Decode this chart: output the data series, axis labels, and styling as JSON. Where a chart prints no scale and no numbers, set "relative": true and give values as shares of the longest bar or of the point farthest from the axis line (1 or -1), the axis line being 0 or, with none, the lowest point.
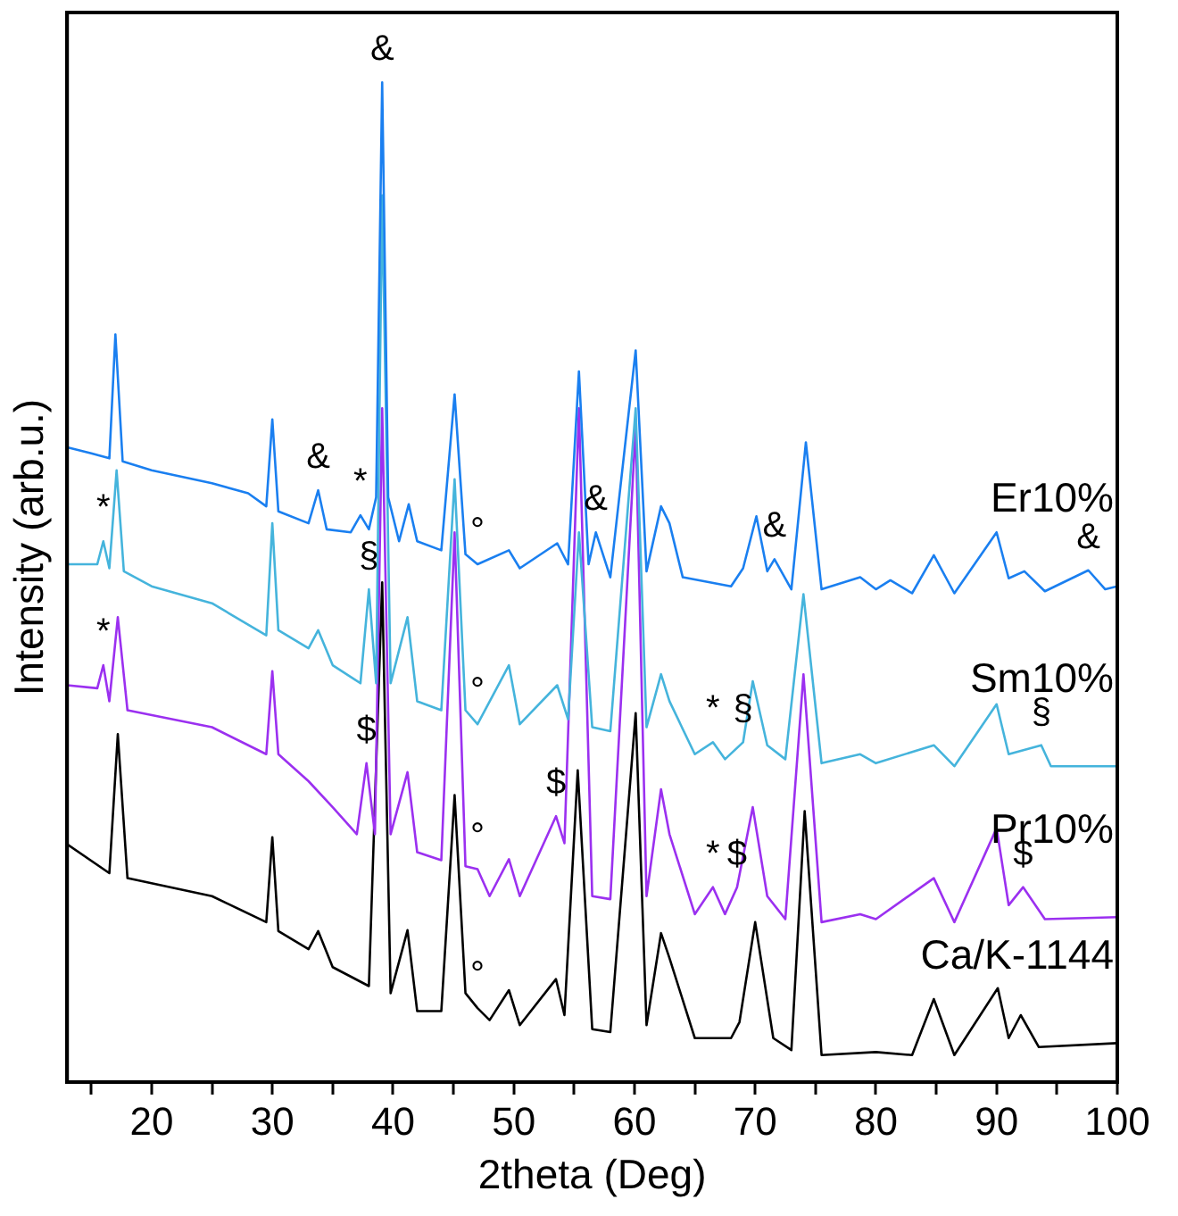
{
  "chart_data": {
    "type": "line",
    "relative": true,
    "xlabel": "2theta (Deg)",
    "ylabel": "Intensity (arb.u.)",
    "xlim": [
      13,
      100
    ],
    "xticks": [
      {
        "value": 15,
        "label": null
      },
      20,
      {
        "value": 25,
        "label": null
      },
      30,
      {
        "value": 35,
        "label": null
      },
      40,
      {
        "value": 45,
        "label": null
      },
      50,
      {
        "value": 55,
        "label": null
      },
      60,
      {
        "value": 65,
        "label": null
      },
      70,
      {
        "value": 75,
        "label": null
      },
      80,
      {
        "value": 85,
        "label": null
      },
      90,
      {
        "value": 95,
        "label": null
      },
      100
    ],
    "grid": false,
    "legend": false,
    "marker": "none",
    "line_style": "solid",
    "series": [
      {
        "name": "Er10%",
        "color": "#1a7ff0",
        "x": [
          13,
          15,
          16.5,
          17,
          17.6,
          20,
          25,
          28,
          29.5,
          30,
          30.5,
          33,
          33.8,
          34.5,
          36.5,
          37.3,
          38,
          38.6,
          39.1,
          39.6,
          40.5,
          41.3,
          42,
          44,
          45.1,
          46,
          47,
          49.6,
          50.5,
          53.6,
          54.5,
          55.4,
          56.2,
          56.8,
          58,
          60.1,
          61,
          62.2,
          62.9,
          64,
          68,
          69,
          70.1,
          71,
          71.6,
          73,
          74.2,
          75.5,
          78.7,
          80,
          81.2,
          83,
          84.8,
          86.5,
          90,
          91,
          92.3,
          94,
          97.6,
          99,
          100
        ],
        "values": [
          0.635,
          0.629,
          0.624,
          0.748,
          0.621,
          0.612,
          0.599,
          0.589,
          0.576,
          0.663,
          0.571,
          0.559,
          0.592,
          0.553,
          0.55,
          0.567,
          0.553,
          0.585,
          1,
          0.585,
          0.541,
          0.578,
          0.541,
          0.532,
          0.688,
          0.528,
          0.518,
          0.532,
          0.514,
          0.539,
          0.518,
          0.711,
          0.518,
          0.55,
          0.505,
          0.732,
          0.511,
          0.576,
          0.559,
          0.505,
          0.496,
          0.514,
          0.566,
          0.511,
          0.523,
          0.493,
          0.64,
          0.493,
          0.505,
          0.493,
          0.502,
          0.489,
          0.527,
          0.489,
          0.55,
          0.504,
          0.511,
          0.491,
          0.512,
          0.493,
          0.496
        ]
      },
      {
        "name": "Sm10%",
        "color": "#45b4dc",
        "x": [
          13,
          15.5,
          16,
          16.5,
          17.1,
          17.7,
          20,
          25,
          29.5,
          30,
          30.5,
          33,
          33.8,
          35,
          37.3,
          38,
          38.6,
          39.1,
          39.8,
          41.2,
          42,
          44,
          45.1,
          46,
          47,
          49.6,
          50.5,
          53.6,
          54.5,
          55.4,
          56.5,
          58,
          60.1,
          61,
          62.2,
          62.9,
          65,
          66.5,
          67.5,
          69,
          69.8,
          71,
          72.5,
          74,
          75.5,
          78.7,
          80,
          84.8,
          86.5,
          90,
          91,
          93.7,
          94.5,
          100
        ],
        "values": [
          0.518,
          0.518,
          0.541,
          0.514,
          0.612,
          0.511,
          0.496,
          0.479,
          0.447,
          0.559,
          0.452,
          0.434,
          0.452,
          0.417,
          0.399,
          0.493,
          0.399,
          0.887,
          0.399,
          0.465,
          0.381,
          0.372,
          0.603,
          0.372,
          0.358,
          0.417,
          0.358,
          0.397,
          0.363,
          0.55,
          0.355,
          0.351,
          0.674,
          0.355,
          0.408,
          0.381,
          0.328,
          0.34,
          0.323,
          0.34,
          0.401,
          0.337,
          0.323,
          0.488,
          0.319,
          0.328,
          0.319,
          0.337,
          0.316,
          0.378,
          0.328,
          0.337,
          0.316,
          0.316
        ]
      },
      {
        "name": "Pr10%",
        "color": "#9b30f0",
        "x": [
          13,
          15.5,
          16,
          16.5,
          17.2,
          18,
          25,
          29.5,
          30,
          30.5,
          33,
          35,
          37,
          37.8,
          38.5,
          39.1,
          39.8,
          41.2,
          42,
          44,
          45.1,
          46,
          47,
          48,
          49.6,
          50.5,
          53.5,
          54.2,
          55.4,
          56.5,
          58,
          60.1,
          61,
          62.2,
          62.9,
          65,
          66.5,
          67.5,
          68.5,
          69.8,
          71,
          72.5,
          74,
          75.5,
          78.7,
          80,
          84.8,
          86.5,
          90,
          91,
          92.2,
          94,
          100
        ],
        "values": [
          0.397,
          0.394,
          0.417,
          0.381,
          0.465,
          0.372,
          0.355,
          0.328,
          0.411,
          0.328,
          0.301,
          0.275,
          0.248,
          0.319,
          0.248,
          0.674,
          0.248,
          0.31,
          0.23,
          0.222,
          0.55,
          0.216,
          0.213,
          0.186,
          0.223,
          0.186,
          0.266,
          0.239,
          0.674,
          0.186,
          0.183,
          0.656,
          0.186,
          0.293,
          0.248,
          0.168,
          0.195,
          0.168,
          0.195,
          0.275,
          0.186,
          0.163,
          0.408,
          0.16,
          0.168,
          0.163,
          0.204,
          0.16,
          0.254,
          0.177,
          0.195,
          0.163,
          0.165
        ]
      },
      {
        "name": "Ca/K-1144",
        "color": "#000000",
        "x": [
          13,
          16.5,
          17.2,
          18,
          25,
          29.5,
          30,
          30.5,
          33,
          33.8,
          35,
          38,
          39.1,
          39.8,
          41.2,
          42,
          44,
          45.1,
          46,
          47,
          48,
          49.6,
          50.5,
          53.5,
          54.2,
          55.3,
          56.5,
          58,
          60.1,
          61,
          62.2,
          62.9,
          65,
          68,
          68.7,
          70,
          71.5,
          73,
          74.1,
          75.5,
          80,
          83,
          84.8,
          86.5,
          90.1,
          91,
          92,
          93.5,
          100
        ],
        "values": [
          0.238,
          0.209,
          0.348,
          0.204,
          0.186,
          0.16,
          0.245,
          0.151,
          0.133,
          0.151,
          0.115,
          0.096,
          0.5,
          0.089,
          0.152,
          0.071,
          0.071,
          0.287,
          0.089,
          0.074,
          0.062,
          0.092,
          0.057,
          0.103,
          0.067,
          0.312,
          0.053,
          0.05,
          0.369,
          0.057,
          0.149,
          0.124,
          0.044,
          0.044,
          0.06,
          0.16,
          0.044,
          0.032,
          0.271,
          0.027,
          0.03,
          0.027,
          0.083,
          0.027,
          0.094,
          0.044,
          0.067,
          0.035,
          0.039
        ]
      }
    ],
    "annotations": [
      {
        "text": "&",
        "x": 39.1,
        "y": 1
      },
      {
        "text": "&",
        "x": 33.8,
        "y": 0.592
      },
      {
        "text": "*",
        "x": 37.3,
        "y": 0.567
      },
      {
        "text": "°",
        "x": 47,
        "y": 0.518
      },
      {
        "text": "&",
        "x": 56.8,
        "y": 0.55
      },
      {
        "text": "&",
        "x": 71.6,
        "y": 0.523
      },
      {
        "text": "&",
        "x": 97.6,
        "y": 0.512
      },
      {
        "text": "*",
        "x": 16,
        "y": 0.541
      },
      {
        "text": "§",
        "x": 38,
        "y": 0.493
      },
      {
        "text": "°",
        "x": 47,
        "y": 0.358
      },
      {
        "text": "*",
        "x": 66.5,
        "y": 0.34
      },
      {
        "text": "§",
        "x": 69,
        "y": 0.34
      },
      {
        "text": "§",
        "x": 93.7,
        "y": 0.337
      },
      {
        "text": "*",
        "x": 16,
        "y": 0.417
      },
      {
        "text": "$",
        "x": 37.8,
        "y": 0.319
      },
      {
        "text": "°",
        "x": 47,
        "y": 0.213
      },
      {
        "text": "$",
        "x": 53.5,
        "y": 0.266
      },
      {
        "text": "*",
        "x": 66.5,
        "y": 0.195
      },
      {
        "text": "$",
        "x": 68.5,
        "y": 0.195
      },
      {
        "text": "$",
        "x": 92.2,
        "y": 0.195
      },
      {
        "text": "°",
        "x": 47,
        "y": 0.074
      }
    ]
  }
}
